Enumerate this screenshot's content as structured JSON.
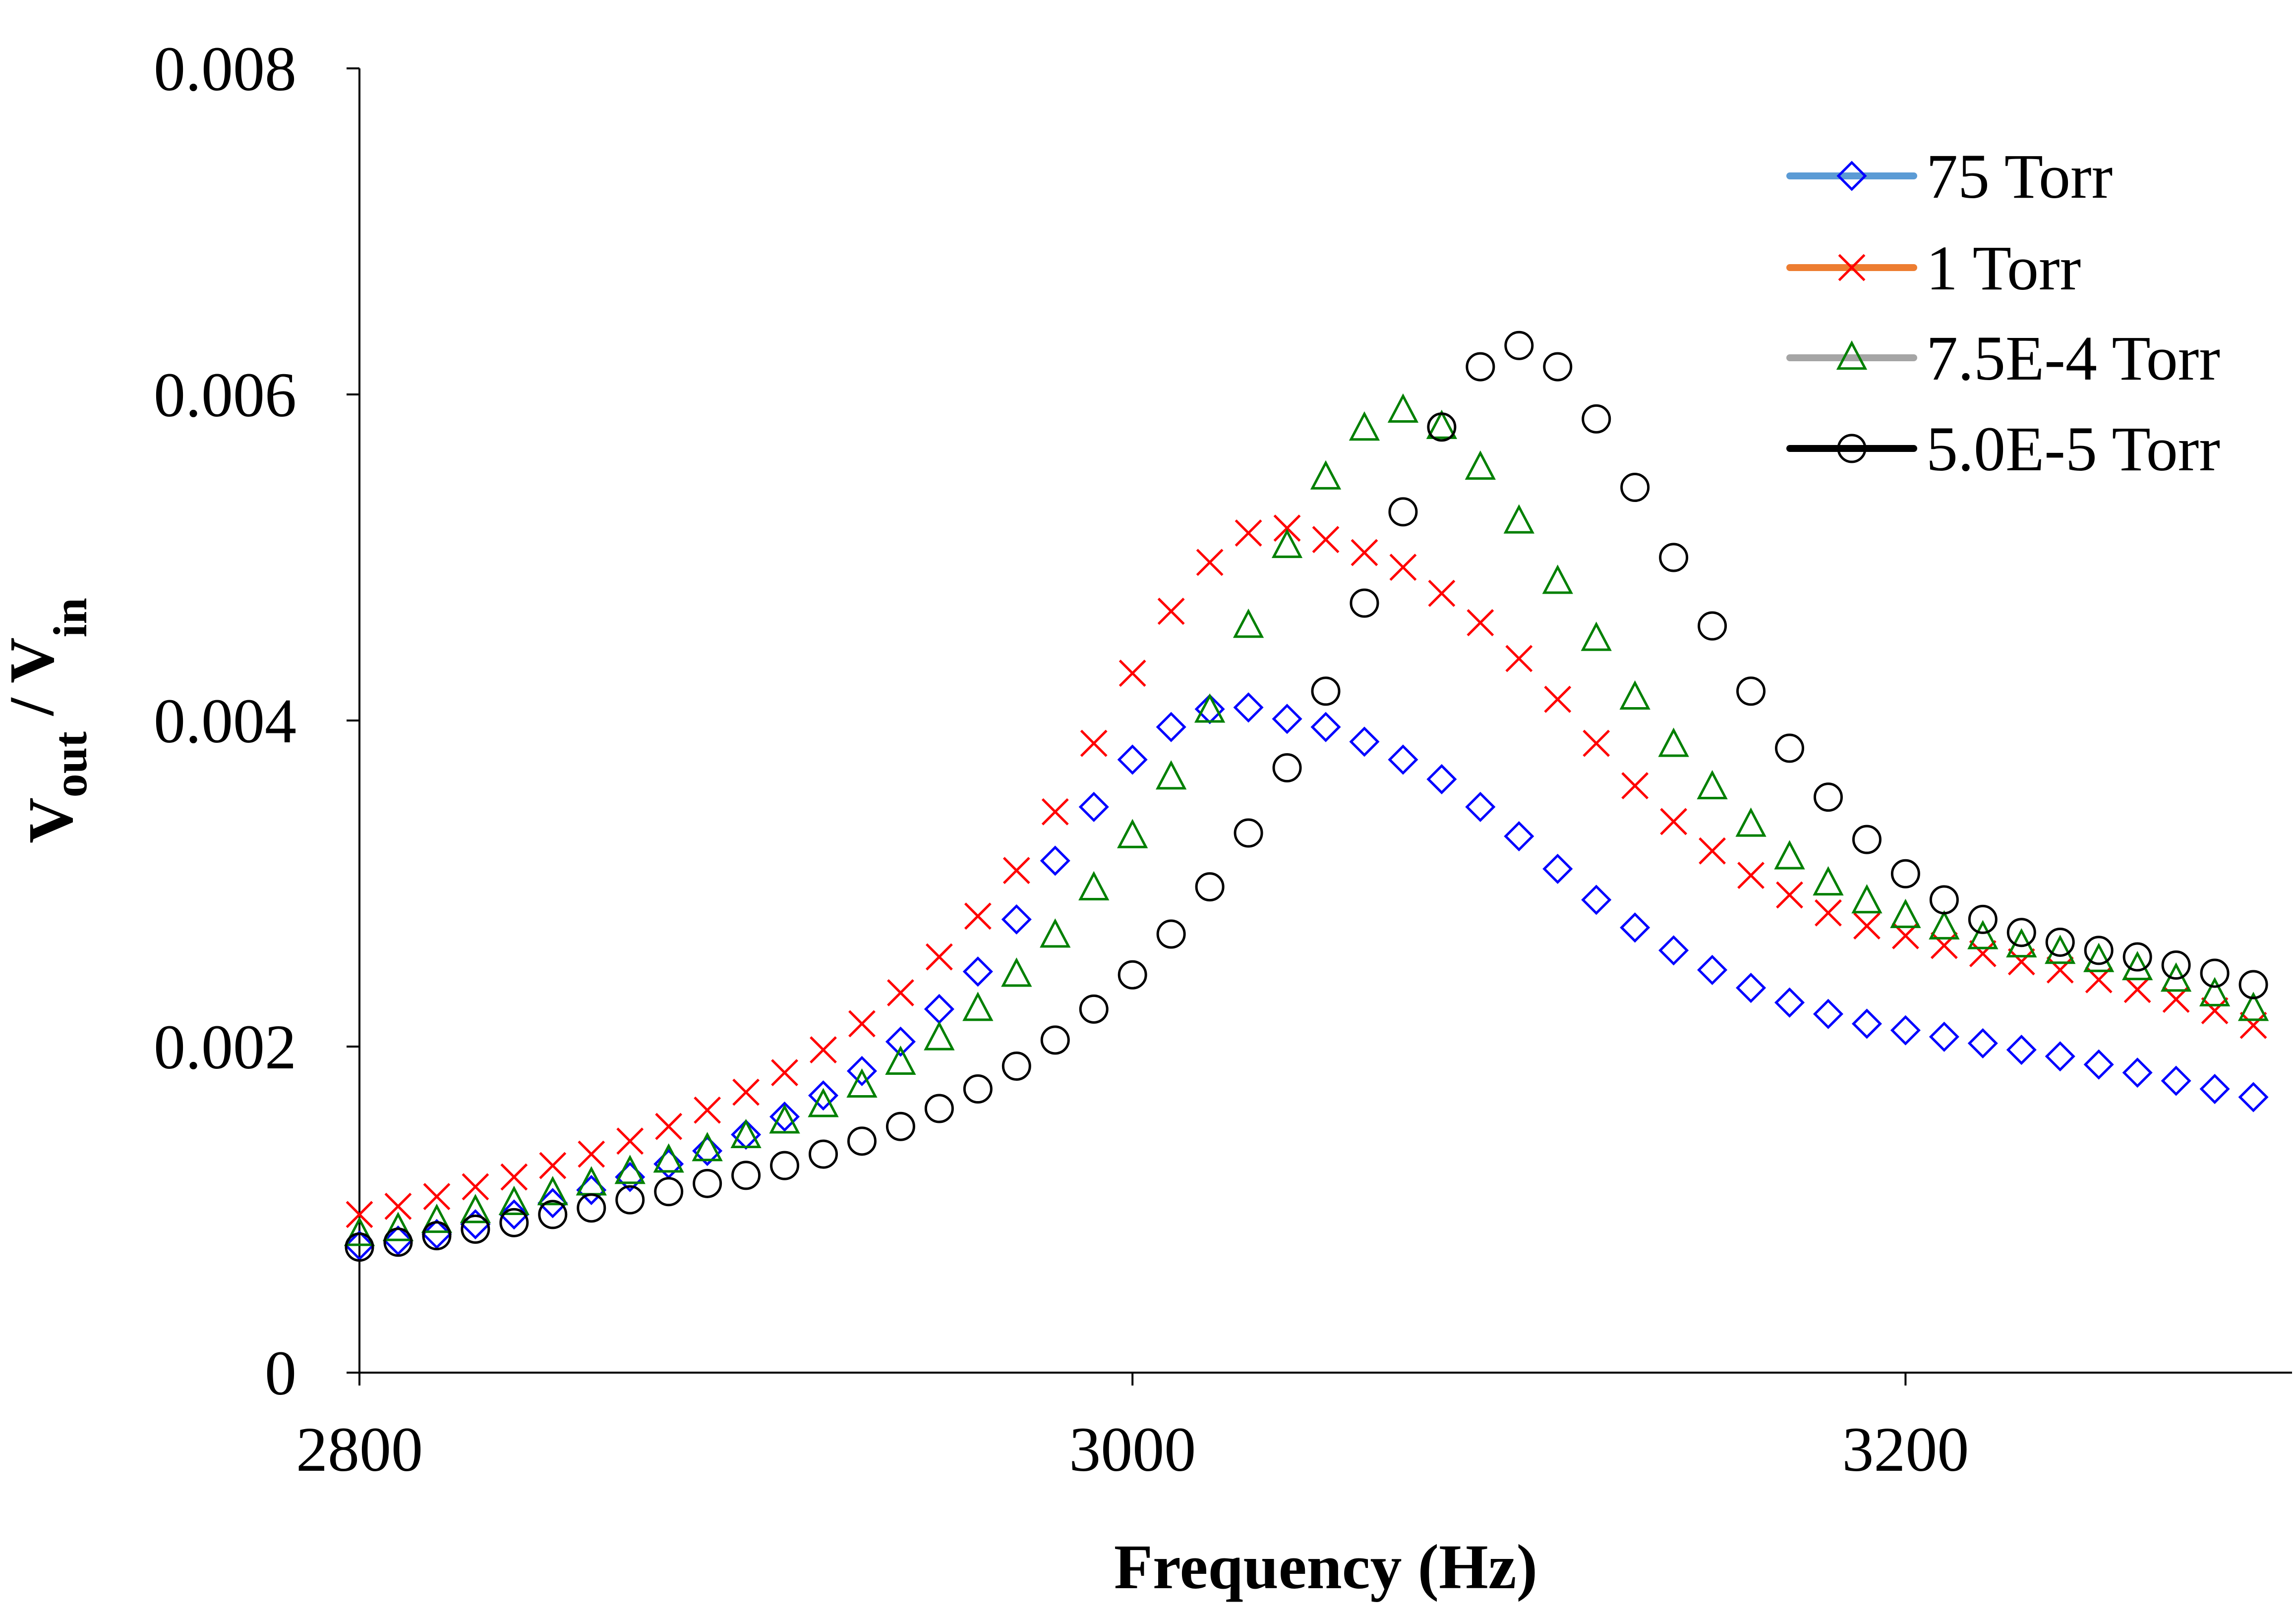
{
  "chart_data": {
    "type": "scatter",
    "xlabel": "Frequency (Hz)",
    "ylabel": {
      "main": "V",
      "sub1": "out",
      "sep": " / V",
      "sub2": "in"
    },
    "xlim": [
      2800,
      3300
    ],
    "ylim": [
      0,
      0.008
    ],
    "x_ticks": [
      "2800",
      "3000",
      "3200"
    ],
    "y_ticks": [
      "0",
      "0.002",
      "0.004",
      "0.006",
      "0.008"
    ],
    "grid": false,
    "legend_position": "top-right",
    "series": [
      {
        "name": "75 Torr",
        "marker": "diamond",
        "marker_color": "#0000ff",
        "line_color": "#5b9bd5",
        "x": [
          2800,
          2810,
          2820,
          2830,
          2840,
          2850,
          2860,
          2870,
          2880,
          2890,
          2900,
          2910,
          2920,
          2930,
          2940,
          2950,
          2960,
          2970,
          2980,
          2990,
          3000,
          3010,
          3020,
          3030,
          3040,
          3050,
          3060,
          3070,
          3080,
          3090,
          3100,
          3110,
          3120,
          3130,
          3140,
          3150,
          3160,
          3170,
          3180,
          3190,
          3200,
          3210,
          3220,
          3230,
          3240,
          3250,
          3260,
          3270,
          3280,
          3290
        ],
        "y": [
          0.00078,
          0.00081,
          0.00085,
          0.00091,
          0.00097,
          0.00104,
          0.00112,
          0.0012,
          0.00128,
          0.00136,
          0.00146,
          0.00157,
          0.0017,
          0.00185,
          0.00203,
          0.00223,
          0.00246,
          0.00278,
          0.00314,
          0.00347,
          0.00376,
          0.00396,
          0.00407,
          0.00408,
          0.00401,
          0.00396,
          0.00387,
          0.00376,
          0.00364,
          0.00347,
          0.00329,
          0.00309,
          0.0029,
          0.00273,
          0.00259,
          0.00247,
          0.00236,
          0.00227,
          0.0022,
          0.00214,
          0.0021,
          0.00206,
          0.00202,
          0.00198,
          0.00194,
          0.00189,
          0.00184,
          0.00179,
          0.00174,
          0.00169
        ]
      },
      {
        "name": "1 Torr",
        "marker": "x",
        "marker_color": "#ff0000",
        "line_color": "#ed7d31",
        "x": [
          2800,
          2810,
          2820,
          2830,
          2840,
          2850,
          2860,
          2870,
          2880,
          2890,
          2900,
          2910,
          2920,
          2930,
          2940,
          2950,
          2960,
          2970,
          2980,
          2990,
          3000,
          3010,
          3020,
          3030,
          3040,
          3050,
          3060,
          3070,
          3080,
          3090,
          3100,
          3110,
          3120,
          3130,
          3140,
          3150,
          3160,
          3170,
          3180,
          3190,
          3200,
          3210,
          3220,
          3230,
          3240,
          3250,
          3260,
          3270,
          3280,
          3290
        ],
        "y": [
          0.00097,
          0.00102,
          0.00108,
          0.00114,
          0.0012,
          0.00127,
          0.00134,
          0.00142,
          0.00151,
          0.00161,
          0.00172,
          0.00184,
          0.00198,
          0.00214,
          0.00233,
          0.00255,
          0.0028,
          0.00308,
          0.00344,
          0.00386,
          0.00429,
          0.00467,
          0.00497,
          0.00515,
          0.00518,
          0.00511,
          0.00503,
          0.00494,
          0.00478,
          0.0046,
          0.00438,
          0.00413,
          0.00386,
          0.0036,
          0.00338,
          0.0032,
          0.00305,
          0.00293,
          0.00282,
          0.00274,
          0.00268,
          0.00262,
          0.00257,
          0.00252,
          0.00247,
          0.00241,
          0.00235,
          0.00229,
          0.00222,
          0.00213
        ]
      },
      {
        "name": "7.5E-4 Torr",
        "marker": "triangle",
        "marker_color": "#008000",
        "line_color": "#a5a5a5",
        "x": [
          2800,
          2810,
          2820,
          2830,
          2840,
          2850,
          2860,
          2870,
          2880,
          2890,
          2900,
          2910,
          2920,
          2930,
          2940,
          2950,
          2960,
          2970,
          2980,
          2990,
          3000,
          3010,
          3020,
          3030,
          3040,
          3050,
          3060,
          3070,
          3080,
          3090,
          3100,
          3110,
          3120,
          3130,
          3140,
          3150,
          3160,
          3170,
          3180,
          3190,
          3200,
          3210,
          3220,
          3230,
          3240,
          3250,
          3260,
          3270,
          3280,
          3290
        ],
        "y": [
          0.00085,
          0.00088,
          0.00093,
          0.00099,
          0.00104,
          0.0011,
          0.00116,
          0.00123,
          0.0013,
          0.00137,
          0.00145,
          0.00154,
          0.00164,
          0.00176,
          0.0019,
          0.00205,
          0.00223,
          0.00244,
          0.00268,
          0.00297,
          0.00329,
          0.00365,
          0.00406,
          0.00458,
          0.00507,
          0.00549,
          0.00579,
          0.0059,
          0.0058,
          0.00555,
          0.00522,
          0.00485,
          0.0045,
          0.00414,
          0.00385,
          0.00359,
          0.00336,
          0.00316,
          0.003,
          0.00289,
          0.0028,
          0.00273,
          0.00267,
          0.00262,
          0.00258,
          0.00253,
          0.00248,
          0.00241,
          0.00232,
          0.00223
        ]
      },
      {
        "name": "5.0E-5 Torr",
        "marker": "circle",
        "marker_color": "#000000",
        "line_color": "#000000",
        "x": [
          2800,
          2810,
          2820,
          2830,
          2840,
          2850,
          2860,
          2870,
          2880,
          2890,
          2900,
          2910,
          2920,
          2930,
          2940,
          2950,
          2960,
          2970,
          2980,
          2990,
          3000,
          3010,
          3020,
          3030,
          3040,
          3050,
          3060,
          3070,
          3080,
          3090,
          3100,
          3110,
          3120,
          3130,
          3140,
          3150,
          3160,
          3170,
          3180,
          3190,
          3200,
          3210,
          3220,
          3230,
          3240,
          3250,
          3260,
          3270,
          3280,
          3290
        ],
        "y": [
          0.00077,
          0.0008,
          0.00084,
          0.00088,
          0.00092,
          0.00097,
          0.00101,
          0.00106,
          0.00111,
          0.00116,
          0.00121,
          0.00127,
          0.00134,
          0.00142,
          0.00151,
          0.00162,
          0.00174,
          0.00188,
          0.00204,
          0.00223,
          0.00244,
          0.00269,
          0.00298,
          0.00331,
          0.00371,
          0.00418,
          0.00472,
          0.00528,
          0.0058,
          0.00617,
          0.0063,
          0.00617,
          0.00585,
          0.00543,
          0.005,
          0.00458,
          0.00418,
          0.00383,
          0.00353,
          0.00327,
          0.00306,
          0.0029,
          0.00278,
          0.0027,
          0.00264,
          0.00259,
          0.00255,
          0.0025,
          0.00245,
          0.00238
        ]
      }
    ]
  }
}
